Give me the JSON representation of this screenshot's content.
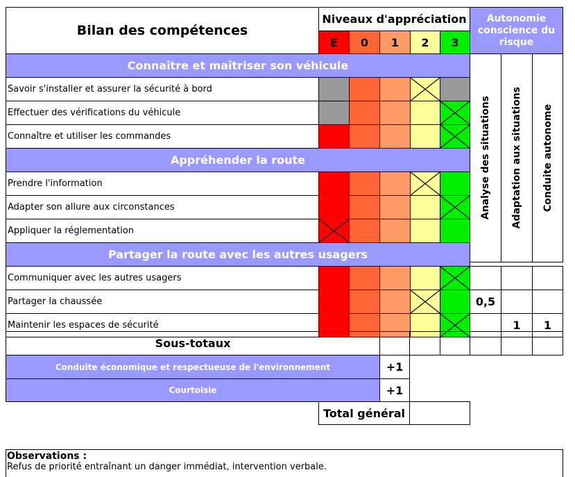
{
  "header": {
    "title": "Bilan des compétences",
    "levels_title": "Niveaux d'appréciation",
    "levels": [
      "E",
      "0",
      "1",
      "2",
      "3"
    ],
    "autonomie_title": "Autonomie conscience du risque",
    "autonomie_columns": [
      "Analyse des situations",
      "Adaptation aux situations",
      "Conduite autonome"
    ]
  },
  "colors": {
    "section": "#9999ff",
    "level_E": "#ff0000",
    "level_0": "#ff6633",
    "level_1": "#ff9966",
    "level_2": "#ffff99",
    "level_3": "#00ee00",
    "disabled": "#999999"
  },
  "sections": [
    {
      "title": "Connaître et maîtriser son véhicule",
      "rows": [
        {
          "label": "Savoir s'installer et assurer la sécurité à bord",
          "disabled": [
            "E"
          ],
          "checked": "2",
          "disabled_extra": [
            "3"
          ]
        },
        {
          "label": "Effectuer des vérifications du véhicule",
          "disabled": [
            "E"
          ],
          "checked": "3"
        },
        {
          "label": "Connaître et utiliser les commandes",
          "disabled": [],
          "checked": "3"
        }
      ]
    },
    {
      "title": "Appréhender la route",
      "rows": [
        {
          "label": "Prendre l'information",
          "disabled": [],
          "checked": "2"
        },
        {
          "label": "Adapter son allure aux circonstances",
          "disabled": [],
          "checked": "3"
        },
        {
          "label": "Appliquer la réglementation",
          "disabled": [],
          "checked": "E"
        }
      ]
    },
    {
      "title": "Partager la route avec les autres usagers",
      "rows": [
        {
          "label": "Communiquer avec les autres usagers",
          "disabled": [],
          "checked": "3",
          "auto": [
            "",
            "",
            ""
          ]
        },
        {
          "label": "Partager la chaussée",
          "disabled": [],
          "checked": "2",
          "auto": [
            "0,5",
            "",
            ""
          ]
        },
        {
          "label": "Maintenir les espaces de sécurité",
          "disabled": [],
          "checked": "3",
          "auto": [
            "",
            "1",
            "1"
          ]
        }
      ]
    }
  ],
  "subtotals": {
    "label": "Sous-totaux"
  },
  "bonus": [
    {
      "label": "Conduite économique et respectueuse de l'environnement",
      "value": "+1"
    },
    {
      "label": "Courtoisie",
      "value": "+1"
    }
  ],
  "total": {
    "label": "Total général",
    "value": ""
  },
  "observations": {
    "title": "Observations :",
    "text": "Refus de priorité entraînant un danger immédiat, intervention verbale."
  }
}
